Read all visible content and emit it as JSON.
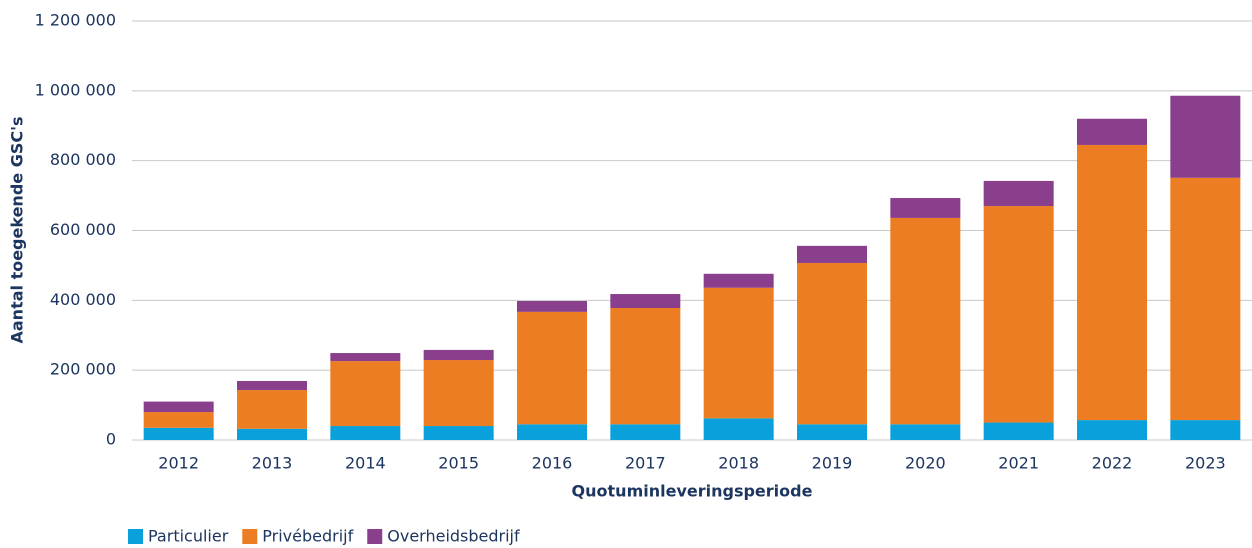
{
  "chart_data": {
    "type": "stacked_bar",
    "y_label": "Aantal toegekende GSC's",
    "x_label": "Quotuminleveringsperiode",
    "categories": [
      "2012",
      "2013",
      "2014",
      "2015",
      "2016",
      "2017",
      "2018",
      "2019",
      "2020",
      "2021",
      "2022",
      "2023"
    ],
    "series": [
      {
        "name": "Particulier",
        "color": "#0aa0dc",
        "values": [
          35000,
          32000,
          40000,
          40000,
          45000,
          45000,
          62000,
          45000,
          45000,
          50000,
          57000,
          57000
        ]
      },
      {
        "name": "Privébedrijf",
        "color": "#ed7d22",
        "values": [
          45000,
          111000,
          186000,
          189000,
          322000,
          333000,
          374000,
          462000,
          591000,
          620000,
          788000,
          694000
        ]
      },
      {
        "name": "Overheidsbedrijf",
        "color": "#8a3f8c",
        "values": [
          30000,
          26000,
          23000,
          29000,
          31000,
          40000,
          40000,
          49000,
          57000,
          72000,
          75000,
          235000
        ]
      }
    ],
    "ylim": [
      0,
      1200000
    ],
    "yticks": [
      0,
      {
        "value": 200000,
        "label": "200 000"
      },
      {
        "value": 400000,
        "label": "400 000"
      },
      {
        "value": 600000,
        "label": "600 000"
      },
      {
        "value": 800000,
        "label": "800 000"
      },
      {
        "value": 1000000,
        "label": "1 000 000"
      },
      {
        "value": 1200000,
        "label": "1 200 000"
      }
    ],
    "grid": true,
    "legend": "bottom-left"
  }
}
